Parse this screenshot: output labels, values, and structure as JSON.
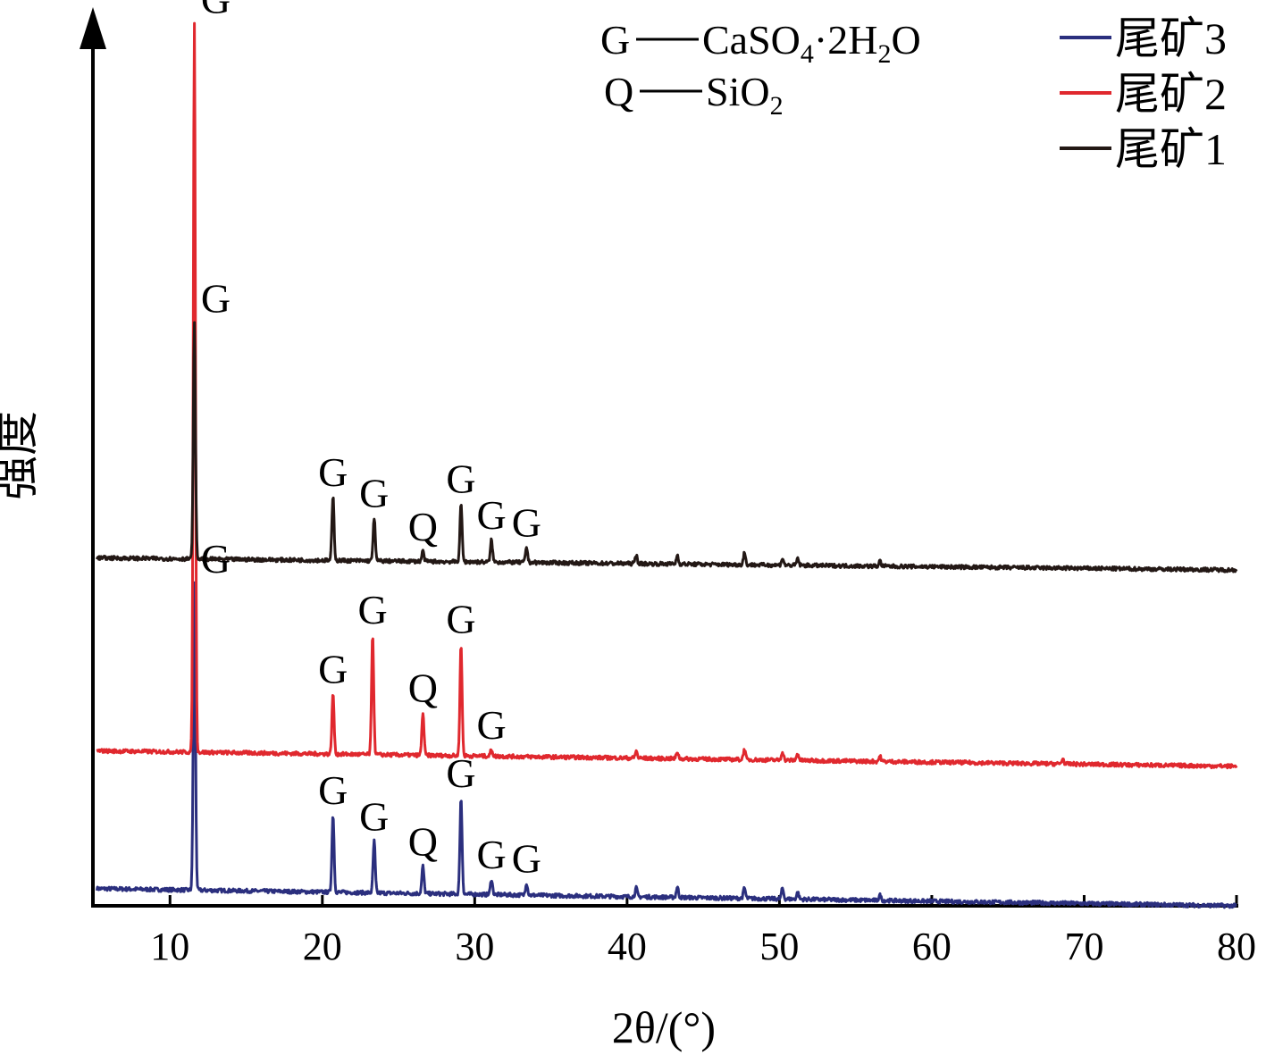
{
  "chart_data": {
    "type": "line",
    "xlabel": "2θ/(°)",
    "ylabel": "强度",
    "xlim": [
      5,
      80
    ],
    "xticks": [
      10,
      20,
      30,
      40,
      50,
      60,
      70,
      80
    ],
    "grid": false,
    "legend_position": "top-right",
    "legend": [
      {
        "name": "尾矿3",
        "color": "#2b2f7e"
      },
      {
        "name": "尾矿2",
        "color": "#e0282e"
      },
      {
        "name": "尾矿1",
        "color": "#231815"
      }
    ],
    "phase_key": {
      "G_symbol": "G",
      "G_formula": "CaSO",
      "G_sub1": "4",
      "G_mid": "·2H",
      "G_sub2": "2",
      "G_end": "O",
      "Q_symbol": "Q",
      "Q_formula": "SiO",
      "Q_sub": "2"
    },
    "series": [
      {
        "name": "尾矿3",
        "color": "#2b2f7e",
        "baseline": [
          [
            5,
            1.0
          ],
          [
            80,
            0.0
          ]
        ],
        "peaks": [
          {
            "x": 11.6,
            "h": 17.8,
            "label": "G"
          },
          {
            "x": 20.7,
            "h": 4.5,
            "label": "G"
          },
          {
            "x": 23.4,
            "h": 3.0,
            "label": "G"
          },
          {
            "x": 26.6,
            "h": 1.6,
            "label": "Q"
          },
          {
            "x": 29.1,
            "h": 5.6,
            "label": "G"
          },
          {
            "x": 31.1,
            "h": 0.9,
            "label": "G"
          },
          {
            "x": 33.4,
            "h": 0.7,
            "label": "G"
          },
          {
            "x": 40.6,
            "h": 0.5
          },
          {
            "x": 43.3,
            "h": 0.6
          },
          {
            "x": 47.7,
            "h": 0.6
          },
          {
            "x": 50.2,
            "h": 0.6
          },
          {
            "x": 51.2,
            "h": 0.4
          },
          {
            "x": 56.6,
            "h": 0.3
          }
        ]
      },
      {
        "name": "尾矿2",
        "color": "#e0282e",
        "baseline": [
          [
            5,
            9.0
          ],
          [
            80,
            8.1
          ]
        ],
        "peaks": [
          {
            "x": 11.6,
            "h": 42.3,
            "label": "G"
          },
          {
            "x": 20.7,
            "h": 3.5,
            "label": "G"
          },
          {
            "x": 23.3,
            "h": 7.0,
            "label": "G"
          },
          {
            "x": 26.6,
            "h": 2.5,
            "label": "Q"
          },
          {
            "x": 29.1,
            "h": 6.5,
            "label": "G"
          },
          {
            "x": 31.1,
            "h": 0.4,
            "label": "G"
          },
          {
            "x": 40.6,
            "h": 0.4
          },
          {
            "x": 43.3,
            "h": 0.4
          },
          {
            "x": 47.7,
            "h": 0.6
          },
          {
            "x": 50.2,
            "h": 0.5
          },
          {
            "x": 51.2,
            "h": 0.4
          },
          {
            "x": 56.6,
            "h": 0.3
          },
          {
            "x": 68.6,
            "h": 0.3
          }
        ]
      },
      {
        "name": "尾矿1",
        "color": "#231815",
        "baseline": [
          [
            5,
            20.2
          ],
          [
            80,
            19.5
          ]
        ],
        "peaks": [
          {
            "x": 11.6,
            "h": 13.7,
            "label": "G"
          },
          {
            "x": 20.7,
            "h": 3.7,
            "label": "G"
          },
          {
            "x": 23.4,
            "h": 2.5,
            "label": "G"
          },
          {
            "x": 26.6,
            "h": 0.6,
            "label": "Q"
          },
          {
            "x": 29.1,
            "h": 3.4,
            "label": "G"
          },
          {
            "x": 31.1,
            "h": 1.3,
            "label": "G"
          },
          {
            "x": 33.4,
            "h": 0.9,
            "label": "G"
          },
          {
            "x": 40.6,
            "h": 0.5
          },
          {
            "x": 43.3,
            "h": 0.5
          },
          {
            "x": 47.7,
            "h": 0.7
          },
          {
            "x": 50.2,
            "h": 0.4
          },
          {
            "x": 51.2,
            "h": 0.4
          },
          {
            "x": 56.6,
            "h": 0.3
          }
        ]
      }
    ]
  }
}
